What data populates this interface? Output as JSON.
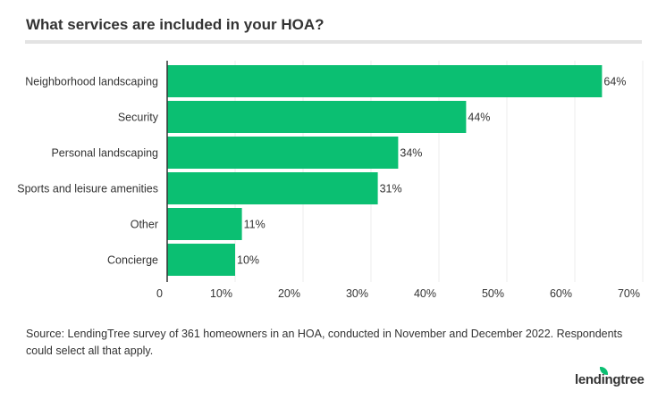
{
  "chart_data": {
    "type": "bar",
    "orientation": "horizontal",
    "title": "What services are included in your HOA?",
    "categories": [
      "Neighborhood landscaping",
      "Security",
      "Personal landscaping",
      "Sports and leisure amenities",
      "Other",
      "Concierge"
    ],
    "values": [
      64,
      44,
      34,
      31,
      11,
      10
    ],
    "data_labels": [
      "64%",
      "44%",
      "34%",
      "31%",
      "11%",
      "10%"
    ],
    "xlim": [
      0,
      70
    ],
    "xticks": [
      0,
      10,
      20,
      30,
      40,
      50,
      60,
      70
    ],
    "xtick_labels": [
      "0",
      "10%",
      "20%",
      "30%",
      "40%",
      "50%",
      "60%",
      "70%"
    ],
    "grid": "vertical",
    "bar_color": "#0bbf72"
  },
  "source": "Source: LendingTree survey of 361 homeowners in an HOA, conducted in November and December 2022. Respondents could select all that apply.",
  "logo": "lendingtree"
}
